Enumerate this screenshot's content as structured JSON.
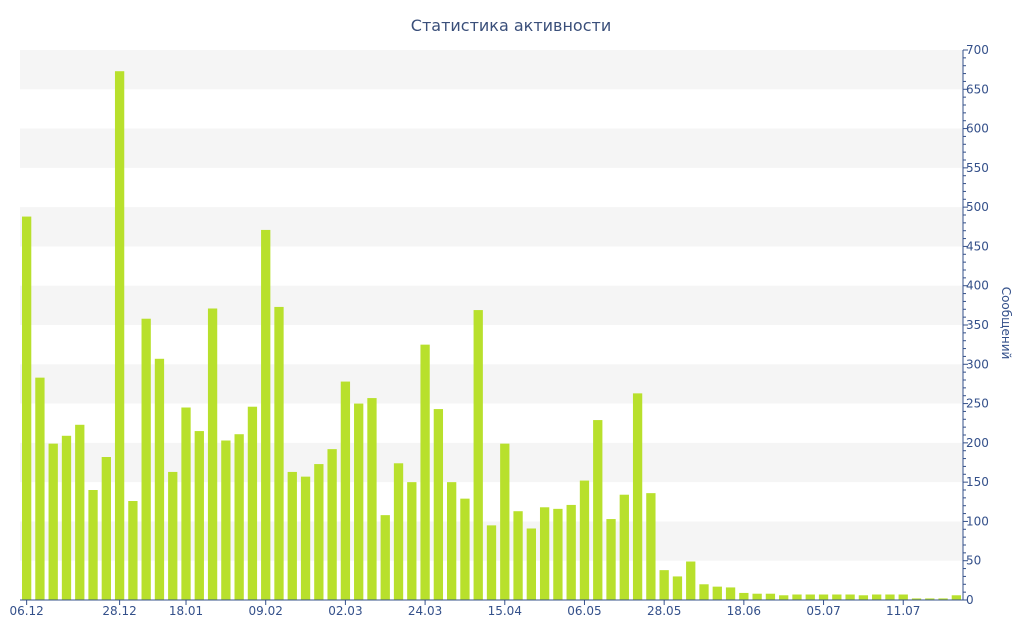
{
  "chart_data": {
    "type": "bar",
    "title": "Статистика активности",
    "xlabel": "",
    "ylabel": "Сообщений",
    "ylim": [
      0,
      700
    ],
    "y_ticks": [
      0,
      50,
      100,
      150,
      200,
      250,
      300,
      350,
      400,
      450,
      500,
      550,
      600,
      650,
      700
    ],
    "y_axis_side": "right",
    "grid": "alternating horizontal bands",
    "x_tick_labels": [
      "06.12",
      "28.12",
      "18.01",
      "09.02",
      "02.03",
      "24.03",
      "15.04",
      "06.05",
      "28.05",
      "18.06",
      "05.07",
      "11.07"
    ],
    "x_tick_bar_index": [
      0,
      7,
      12,
      18,
      24,
      30,
      36,
      42,
      48,
      54,
      60,
      66
    ],
    "bar_color": "#b8e02c",
    "values": [
      488,
      283,
      199,
      209,
      223,
      140,
      182,
      673,
      126,
      358,
      307,
      163,
      245,
      215,
      371,
      203,
      211,
      246,
      471,
      373,
      163,
      157,
      173,
      192,
      278,
      250,
      257,
      108,
      174,
      150,
      325,
      243,
      150,
      129,
      369,
      95,
      199,
      113,
      91,
      118,
      116,
      121,
      152,
      229,
      103,
      134,
      263,
      136,
      38,
      30,
      49,
      20,
      17,
      16,
      9,
      8,
      8,
      6,
      7,
      7,
      7,
      7,
      7,
      6,
      7,
      7,
      7,
      2,
      2,
      2,
      6
    ]
  }
}
